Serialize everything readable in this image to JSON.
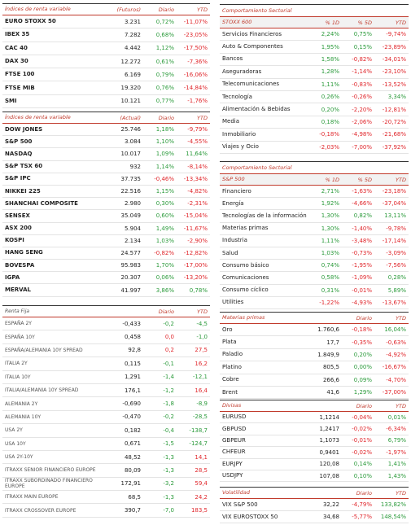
{
  "colors": {
    "up": "#2a9a3a",
    "down": "#e0262b"
  },
  "left": [
    {
      "columns": [
        "Índices de renta variable",
        "(Futuros)",
        "Diario",
        "YTD"
      ],
      "colored_columns": [
        2,
        3
      ],
      "groups": [
        [
          [
            "EURO STOXX 50",
            "3.231",
            "0,72%",
            "-11,07%"
          ],
          [
            "IBEX 35",
            "7.282",
            "0,68%",
            "-23,05%"
          ],
          [
            "CAC 40",
            "4.442",
            "1,12%",
            "-17,50%"
          ],
          [
            "DAX 30",
            "12.272",
            "0,61%",
            "-7,36%"
          ],
          [
            "FTSE 100",
            "6.169",
            "0,79%",
            "-16,06%"
          ],
          [
            "FTSE MIB",
            "19.320",
            "0,76%",
            "-14,84%"
          ],
          [
            "SMI",
            "10.121",
            "0,77%",
            "-1,76%"
          ]
        ]
      ]
    },
    {
      "columns": [
        "Índices de renta variable",
        "(Actual)",
        "Diario",
        "YTD"
      ],
      "colored_columns": [
        2,
        3
      ],
      "groups": [
        [
          [
            "DOW JONES",
            "25.746",
            "1,18%",
            "-9,79%"
          ],
          [
            "S&P 500",
            "3.084",
            "1,10%",
            "-4,55%"
          ],
          [
            "NASDAQ",
            "10.017",
            "1,09%",
            "11,64%"
          ],
          [
            "S&P TSX 60",
            "932",
            "1,14%",
            "-8,14%"
          ],
          [
            "S&P IPC",
            "37.735",
            "-0,46%",
            "-13,34%"
          ]
        ],
        [
          [
            "NIKKEI 225",
            "22.516",
            "1,15%",
            "-4,82%"
          ],
          [
            "SHANCHAI COMPOSITE",
            "2.980",
            "0,30%",
            "-2,31%"
          ],
          [
            "SENSEX",
            "35.049",
            "0,60%",
            "-15,04%"
          ],
          [
            "ASX 200",
            "5.904",
            "1,49%",
            "-11,67%"
          ],
          [
            "KOSPI",
            "2.134",
            "1,03%",
            "-2,90%"
          ],
          [
            "HANG SENG",
            "24.577",
            "-0,82%",
            "-12,82%"
          ]
        ],
        [
          [
            "BOVESPA",
            "95.983",
            "1,70%",
            "-17,00%"
          ],
          [
            "IGPA",
            "20.307",
            "0,06%",
            "-13,20%"
          ],
          [
            "MERVAL",
            "41.997",
            "3,86%",
            "0,78%"
          ]
        ]
      ]
    },
    {
      "columns": [
        "Renta Fija",
        "Diario",
        "YTD"
      ],
      "colored_columns": [
        2,
        3
      ],
      "inverted": true,
      "groups": [
        [
          [
            "ESPAÑA 2Y",
            "-0,433",
            "-0,2",
            "-4,5"
          ],
          [
            "ESPAÑA 10Y",
            "0,458",
            "0,0",
            "-1,0"
          ],
          [
            "ESPAÑA/ALEMANIA 10Y SPREAD",
            "92,8",
            "0,2",
            "27,5"
          ],
          [
            "ITALIA 2Y",
            "0,115",
            "-0,1",
            "16,2"
          ],
          [
            "ITALIA 10Y",
            "1,291",
            "-1,4",
            "-12,1"
          ],
          [
            "ITALIA/ALEMANIA 10Y SPREAD",
            "176,1",
            "-1,2",
            "16,4"
          ],
          [
            "ALEMANIA 2Y",
            "-0,690",
            "-1,8",
            "-8,9"
          ],
          [
            "ALEMANIA 10Y",
            "-0,470",
            "-0,2",
            "-28,5"
          ],
          [
            "USA 2Y",
            "0,182",
            "-0,4",
            "-138,7"
          ],
          [
            "USA 10Y",
            "0,671",
            "-1,5",
            "-124,7"
          ],
          [
            "USA 2Y-10Y",
            "48,52",
            "-1,3",
            "14,1"
          ],
          [
            "ITRAXX SENIOR FINANCIERO EUROPE",
            "80,09",
            "-1,3",
            "28,5"
          ],
          [
            "ITRAXX SUBORDINADO FINANCIERO EUROPE",
            "172,91",
            "-3,2",
            "59,4"
          ],
          [
            "ITRAXX MAIN EUROPE",
            "68,5",
            "-1,3",
            "24,2"
          ],
          [
            "ITRAXX CROSSOVER EUROPE",
            "390,7",
            "-7,0",
            "183,5"
          ]
        ]
      ]
    }
  ],
  "right": [
    {
      "heading": "Comportamiento Sectorial",
      "columns": [
        "STOXX 600",
        "% 1D",
        "% 5D",
        "YTD"
      ],
      "colored_columns": [
        1,
        2,
        3
      ],
      "groups": [
        [
          [
            "Servicios Financieros",
            "2,24%",
            "0,75%",
            "-9,74%"
          ],
          [
            "Auto & Componentes",
            "1,95%",
            "0,15%",
            "-23,89%"
          ],
          [
            "Bancos",
            "1,58%",
            "-0,82%",
            "-34,01%"
          ],
          [
            "Aseguradoras",
            "1,28%",
            "-1,14%",
            "-23,10%"
          ],
          [
            "Telecomunicaciones",
            "1,11%",
            "-0,83%",
            "-13,52%"
          ]
        ],
        [
          [
            "Tecnología",
            "0,26%",
            "-0,26%",
            "3,34%"
          ],
          [
            "Alimentación & Bebidas",
            "0,20%",
            "-2,20%",
            "-12,81%"
          ],
          [
            "Media",
            "0,18%",
            "-2,06%",
            "-20,72%"
          ],
          [
            "Inmobiliario",
            "-0,18%",
            "-4,98%",
            "-21,68%"
          ],
          [
            "Viajes y Ocio",
            "-2,03%",
            "-7,00%",
            "-37,92%"
          ]
        ]
      ]
    },
    {
      "heading": "Comportamiento Sectorial",
      "columns": [
        "S&P 500",
        "% 1D",
        "% 5D",
        "YTD"
      ],
      "colored_columns": [
        1,
        2,
        3
      ],
      "groups": [
        [
          [
            "Financiero",
            "2,71%",
            "-1,63%",
            "-23,18%"
          ],
          [
            "Energía",
            "1,92%",
            "-4,66%",
            "-37,04%"
          ],
          [
            "Tecnologías de la información",
            "1,30%",
            "0,82%",
            "13,11%"
          ],
          [
            "Materias primas",
            "1,30%",
            "-1,40%",
            "-9,78%"
          ],
          [
            "Industria",
            "1,11%",
            "-3,48%",
            "-17,14%"
          ]
        ],
        [
          [
            "Salud",
            "1,03%",
            "-0,73%",
            "-3,09%"
          ],
          [
            "Consumo básico",
            "0,74%",
            "-1,95%",
            "-7,56%"
          ],
          [
            "Comunicaciones",
            "0,58%",
            "-1,09%",
            "0,28%"
          ],
          [
            "Consumo cíclico",
            "0,31%",
            "-0,01%",
            "5,89%"
          ],
          [
            "Utilities",
            "-1,22%",
            "-4,93%",
            "-13,67%"
          ]
        ]
      ]
    },
    {
      "columns": [
        "Materias primas",
        "Diario",
        "YTD"
      ],
      "colored_columns": [
        2,
        3
      ],
      "groups": [
        [
          [
            "Oro",
            "1.760,6",
            "-0,18%",
            "16,04%"
          ],
          [
            "Plata",
            "17,7",
            "-0,35%",
            "-0,63%"
          ],
          [
            "Paladio",
            "1.849,9",
            "0,20%",
            "-4,92%"
          ],
          [
            "Platino",
            "805,5",
            "0,00%",
            "-16,67%"
          ],
          [
            "Cobre",
            "266,6",
            "0,09%",
            "-4,70%"
          ],
          [
            "Brent",
            "41,6",
            "1,29%",
            "-37,00%"
          ]
        ]
      ]
    },
    {
      "columns": [
        "Divisas",
        "Diario",
        "YTD"
      ],
      "colored_columns": [
        2,
        3
      ],
      "groups": [
        [
          [
            "EURUSD",
            "1,1214",
            "-0,04%",
            "0,01%"
          ],
          [
            "GBPUSD",
            "1,2417",
            "-0,02%",
            "-6,34%"
          ],
          [
            "GBPEUR",
            "1,1073",
            "-0,01%",
            "6,79%"
          ],
          [
            "CHFEUR",
            "0,9401",
            "-0,02%",
            "-1,97%"
          ],
          [
            "EURJPY",
            "120,08",
            "0,14%",
            "1,41%"
          ],
          [
            "USDJPY",
            "107,08",
            "0,10%",
            "1,43%"
          ]
        ]
      ]
    },
    {
      "columns": [
        "Volatilidad",
        "Diario",
        "YTD"
      ],
      "colored_columns": [
        2,
        3
      ],
      "groups": [
        [
          [
            "VIX S&P 500",
            "32,22",
            "-4,79%",
            "133,82%"
          ],
          [
            "VIX EUROSTOXX 50",
            "34,68",
            "-5,77%",
            "148,54%"
          ]
        ]
      ]
    }
  ]
}
